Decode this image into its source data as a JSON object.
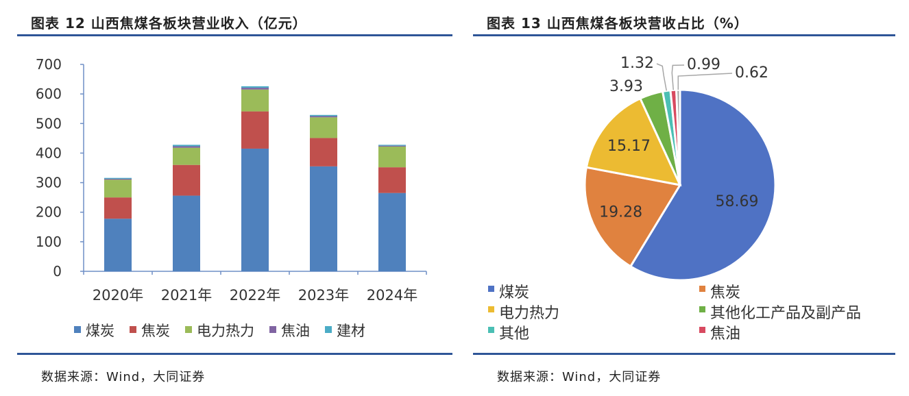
{
  "left": {
    "title": "图表 12 山西焦煤各板块营业收入（亿元）",
    "source": "数据来源：Wind，大同证券"
  },
  "right": {
    "title": "图表 13 山西焦煤各板块营收占比（%）",
    "source": "数据来源：Wind，大同证券"
  },
  "colors": {
    "rule": "#2e5597"
  },
  "chart_data": [
    {
      "type": "bar",
      "stacked": true,
      "categories": [
        "2020年",
        "2021年",
        "2022年",
        "2023年",
        "2024年"
      ],
      "ylim": [
        0,
        700
      ],
      "yticks": [
        "0",
        "100",
        "200",
        "300",
        "400",
        "500",
        "600",
        "700"
      ],
      "series": [
        {
          "name": "煤炭",
          "color": "#4f81bd",
          "values": [
            178,
            256,
            415,
            355,
            265
          ]
        },
        {
          "name": "焦炭",
          "color": "#c0504d",
          "values": [
            72,
            104,
            126,
            96,
            87
          ]
        },
        {
          "name": "电力热力",
          "color": "#9bbb59",
          "values": [
            60,
            58,
            74,
            70,
            70
          ]
        },
        {
          "name": "焦油",
          "color": "#8064a2",
          "values": [
            3,
            5,
            6,
            4,
            3
          ]
        },
        {
          "name": "建材",
          "color": "#4bacc6",
          "values": [
            3,
            5,
            5,
            4,
            3
          ]
        }
      ],
      "legend_position": "bottom",
      "grid": false
    },
    {
      "type": "pie",
      "slices": [
        {
          "name": "煤炭",
          "value": 58.69,
          "label": "58.69",
          "color": "#4f72c4"
        },
        {
          "name": "焦炭",
          "value": 19.28,
          "label": "19.28",
          "color": "#e0823f"
        },
        {
          "name": "电力热力",
          "value": 15.17,
          "label": "15.17",
          "color": "#ecbb32"
        },
        {
          "name": "其他化工产品及副产品",
          "value": 3.93,
          "label": "3.93",
          "color": "#6fb046"
        },
        {
          "name": "其他",
          "value": 1.32,
          "label": "1.32",
          "color": "#4bbfb4"
        },
        {
          "name": "焦油",
          "value": 0.99,
          "label": "0.99",
          "color": "#d84a60"
        },
        {
          "name": "",
          "value": 0.62,
          "label": "0.62",
          "color": "#a9a9a9"
        }
      ],
      "legend": [
        "煤炭",
        "焦炭",
        "电力热力",
        "其他化工产品及副产品",
        "其他",
        "焦油"
      ],
      "legend_position": "bottom"
    }
  ]
}
